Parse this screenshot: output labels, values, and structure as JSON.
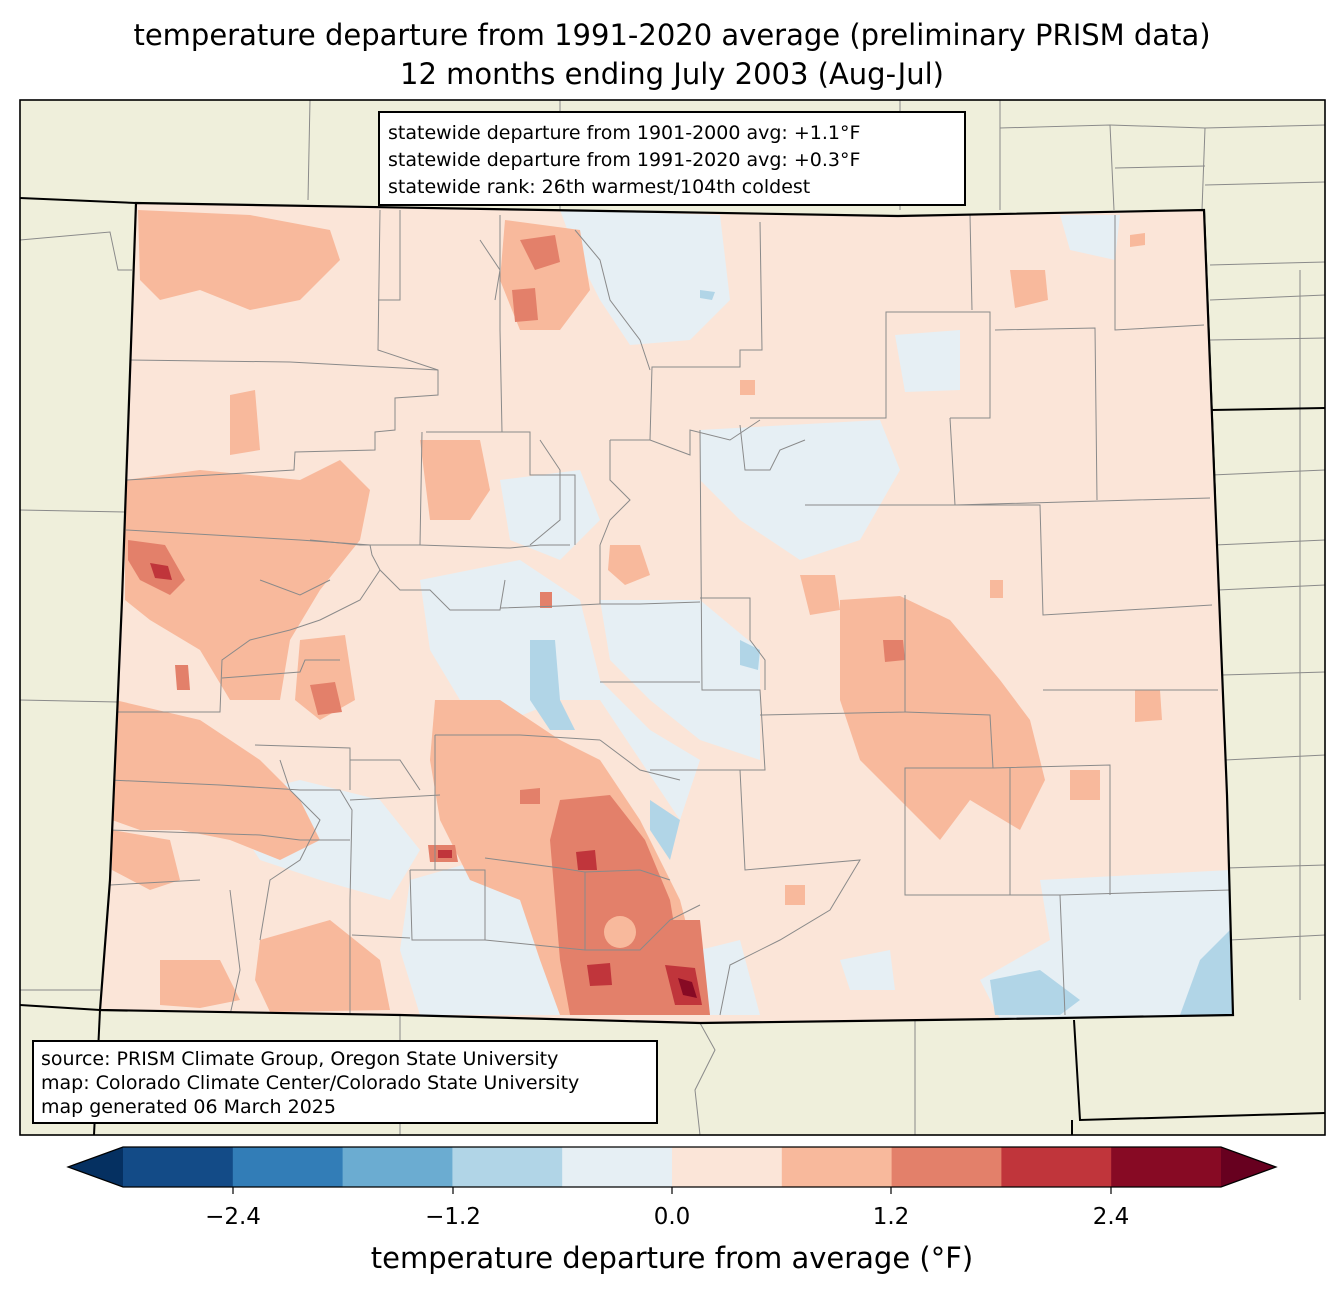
{
  "title": {
    "line1": "temperature departure from 1991-2020 average (preliminary PRISM data)",
    "line2": "12 months ending July 2003 (Aug-Jul)"
  },
  "stats": {
    "line1": "statewide departure from 1901-2000 avg: +1.1°F",
    "line2": "statewide departure from 1991-2020 avg: +0.3°F",
    "line3": "statewide rank: 26th warmest/104th coldest"
  },
  "credits": {
    "line1": "source: PRISM Climate Group, Oregon State University",
    "line2": "map: Colorado Climate Center/Colorado State University",
    "line3": "map generated 06 March 2025"
  },
  "colorbar": {
    "label": "temperature departure from average (°F)",
    "ticks": [
      "−2.4",
      "−1.2",
      "0.0",
      "1.2",
      "2.4"
    ],
    "colors": [
      "#053061",
      "#134b87",
      "#327db7",
      "#6bacd1",
      "#b1d5e7",
      "#e6eff4",
      "#fbe5d8",
      "#f8b99c",
      "#e3806a",
      "#c0353b",
      "#870a24",
      "#67001f"
    ]
  },
  "map_colors": {
    "land_outside": "#efefdb",
    "state_base": "#fbe5d8",
    "light_blue": "#e6eff4",
    "blue": "#b1d5e7",
    "mid_blue": "#6bacd1",
    "light_red": "#f8b99c",
    "red": "#e3806a",
    "dark_red": "#c0353b",
    "darkest_red": "#870a24"
  }
}
